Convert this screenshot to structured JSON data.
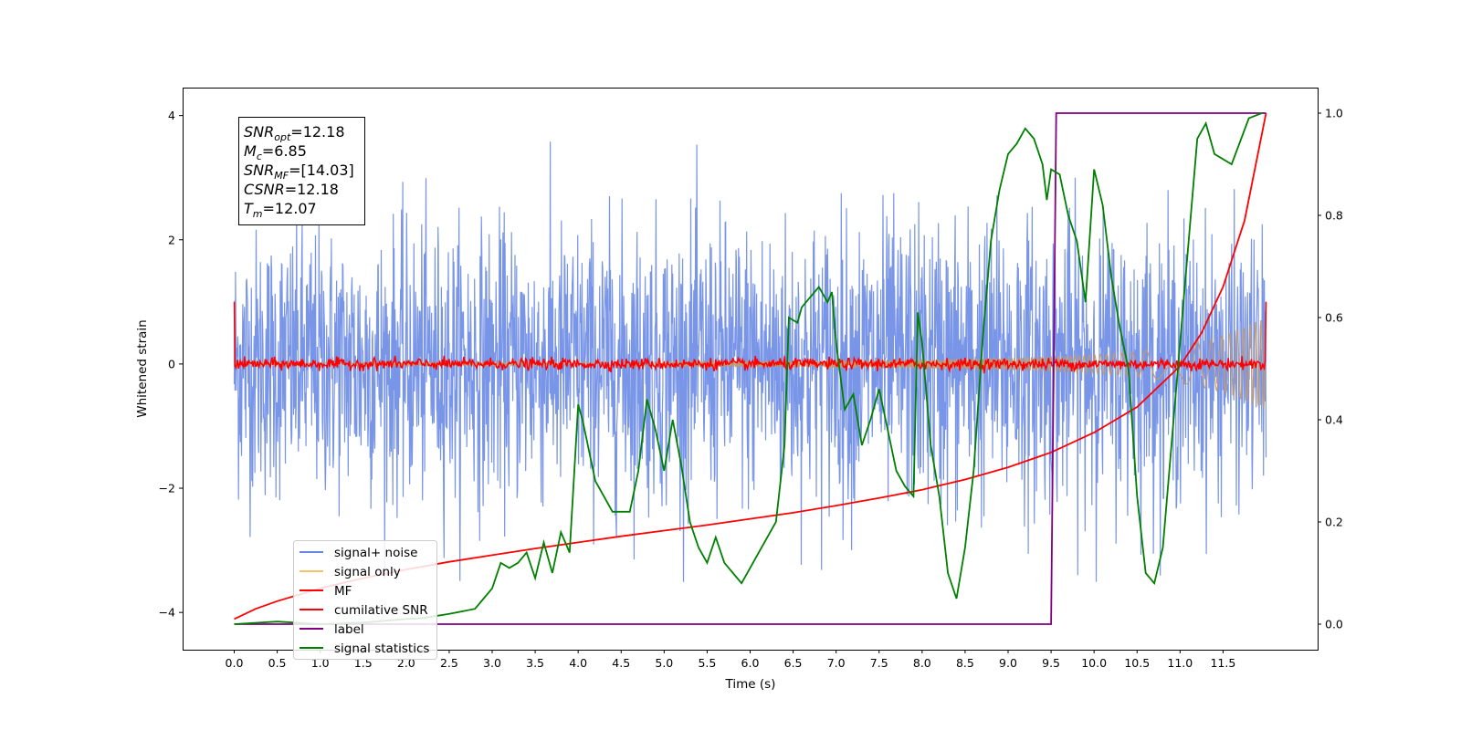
{
  "chart_data": {
    "type": "line",
    "xlabel": "Time (s)",
    "ylabel": "Whitened strain",
    "xlim": [
      -0.6,
      12.6
    ],
    "ylim": [
      -4.6,
      4.45
    ],
    "y2lim": [
      -0.05,
      1.05
    ],
    "x_ticks": [
      "0.0",
      "0.5",
      "1.0",
      "1.5",
      "2.0",
      "2.5",
      "3.0",
      "3.5",
      "4.0",
      "4.5",
      "5.0",
      "5.5",
      "6.0",
      "6.5",
      "7.0",
      "7.5",
      "8.0",
      "8.5",
      "9.0",
      "9.5",
      "10.0",
      "10.5",
      "11.0",
      "11.5"
    ],
    "y_ticks": [
      "4",
      "2",
      "0",
      "−2",
      "−4"
    ],
    "y2_ticks": [
      "1.0",
      "0.8",
      "0.6",
      "0.4",
      "0.2",
      "0.0"
    ],
    "grid": false,
    "legend_position": "lower-left",
    "info_box": [
      {
        "sym": "SNR",
        "sub": "opt",
        "val": "=12.18"
      },
      {
        "sym": "M",
        "sub": "c",
        "val": "=6.85"
      },
      {
        "sym": "SNR",
        "sub": "MF",
        "val": "=[14.03]"
      },
      {
        "sym": "CSNR",
        "sub": "",
        "val": "=12.18"
      },
      {
        "sym": "T",
        "sub": "m",
        "val": "=12.07"
      }
    ],
    "series": [
      {
        "name": "signal+ noise",
        "color": "#6a89e6",
        "axis": "left",
        "envelope": {
          "x": [
            0,
            3,
            6,
            9,
            12
          ],
          "upper": [
            2.6,
            2.6,
            2.8,
            3.0,
            2.4
          ],
          "lower": [
            -2.5,
            -2.6,
            -2.6,
            -2.7,
            -2.4
          ]
        }
      },
      {
        "name": "signal only",
        "color": "#f5c26b",
        "axis": "left",
        "envelope": {
          "x": [
            0,
            4,
            6,
            7,
            8,
            9,
            10,
            10.5,
            11,
            11.5,
            12
          ],
          "upper": [
            0.02,
            0.03,
            0.05,
            0.06,
            0.08,
            0.1,
            0.15,
            0.2,
            0.3,
            0.45,
            0.75
          ]
        }
      },
      {
        "name": "MF",
        "color": "#ff0000",
        "axis": "left",
        "baseline": 0.0,
        "start": 1.0,
        "end": 1.0
      },
      {
        "name": "cumilative SNR",
        "color": "#ff0000",
        "axis": "right",
        "x": [
          0,
          0.25,
          0.5,
          1,
          1.5,
          2,
          2.5,
          3,
          3.5,
          4,
          4.5,
          5,
          5.5,
          6,
          6.5,
          7,
          7.5,
          8,
          8.5,
          9,
          9.5,
          10,
          10.5,
          11,
          11.25,
          11.5,
          11.75,
          12
        ],
        "y": [
          0.01,
          0.03,
          0.045,
          0.07,
          0.09,
          0.107,
          0.122,
          0.135,
          0.148,
          0.16,
          0.172,
          0.183,
          0.194,
          0.206,
          0.218,
          0.232,
          0.247,
          0.263,
          0.283,
          0.307,
          0.336,
          0.375,
          0.425,
          0.505,
          0.57,
          0.66,
          0.79,
          1.0
        ]
      },
      {
        "name": "label",
        "color": "#800080",
        "axis": "right",
        "x": [
          0,
          9.5,
          9.56,
          12
        ],
        "y": [
          0,
          0,
          1,
          1
        ]
      },
      {
        "name": "signal statistics",
        "color": "#008000",
        "axis": "right",
        "x": [
          0,
          0.5,
          1,
          1.5,
          2,
          2.2,
          2.5,
          2.8,
          2.9,
          3.0,
          3.1,
          3.2,
          3.3,
          3.4,
          3.5,
          3.6,
          3.7,
          3.8,
          3.9,
          4.0,
          4.05,
          4.2,
          4.4,
          4.6,
          4.7,
          4.8,
          4.9,
          5.0,
          5.1,
          5.2,
          5.3,
          5.4,
          5.5,
          5.6,
          5.7,
          5.8,
          5.9,
          6.0,
          6.1,
          6.2,
          6.3,
          6.4,
          6.45,
          6.55,
          6.6,
          6.7,
          6.8,
          6.9,
          6.95,
          7.0,
          7.1,
          7.2,
          7.3,
          7.4,
          7.5,
          7.6,
          7.7,
          7.8,
          7.9,
          7.95,
          8.0,
          8.1,
          8.2,
          8.3,
          8.4,
          8.5,
          8.6,
          8.7,
          8.8,
          8.9,
          9.0,
          9.1,
          9.2,
          9.3,
          9.4,
          9.45,
          9.5,
          9.6,
          9.7,
          9.8,
          9.9,
          10.0,
          10.1,
          10.2,
          10.3,
          10.4,
          10.5,
          10.6,
          10.7,
          10.8,
          11.0,
          11.2,
          11.3,
          11.4,
          11.6,
          11.8,
          11.95
        ],
        "y": [
          0.0,
          0.005,
          0.0,
          0.003,
          0.01,
          0.012,
          0.02,
          0.03,
          0.05,
          0.07,
          0.12,
          0.11,
          0.12,
          0.14,
          0.09,
          0.16,
          0.1,
          0.18,
          0.14,
          0.43,
          0.4,
          0.28,
          0.22,
          0.22,
          0.3,
          0.44,
          0.38,
          0.3,
          0.4,
          0.31,
          0.2,
          0.15,
          0.12,
          0.17,
          0.12,
          0.1,
          0.08,
          0.11,
          0.14,
          0.17,
          0.2,
          0.35,
          0.6,
          0.59,
          0.62,
          0.64,
          0.66,
          0.63,
          0.65,
          0.55,
          0.42,
          0.45,
          0.35,
          0.4,
          0.46,
          0.38,
          0.3,
          0.27,
          0.25,
          0.61,
          0.55,
          0.35,
          0.25,
          0.1,
          0.05,
          0.15,
          0.3,
          0.55,
          0.75,
          0.85,
          0.92,
          0.94,
          0.97,
          0.95,
          0.9,
          0.83,
          0.89,
          0.88,
          0.8,
          0.75,
          0.63,
          0.89,
          0.82,
          0.68,
          0.58,
          0.5,
          0.25,
          0.1,
          0.08,
          0.15,
          0.55,
          0.95,
          0.98,
          0.92,
          0.9,
          0.99,
          1.0
        ]
      }
    ]
  }
}
